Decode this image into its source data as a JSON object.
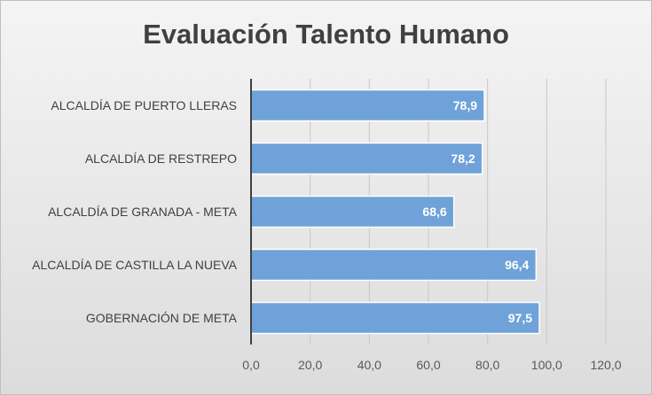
{
  "chart_data": {
    "type": "bar",
    "orientation": "horizontal",
    "title": "Evaluación Talento Humano",
    "categories": [
      "ALCALDÍA DE PUERTO LLERAS",
      "ALCALDÍA DE RESTREPO",
      "ALCALDÍA DE GRANADA - META",
      "ALCALDÍA DE CASTILLA LA NUEVA",
      "GOBERNACIÓN DE META"
    ],
    "values": [
      78.9,
      78.2,
      68.6,
      96.4,
      97.5
    ],
    "value_labels": [
      "78,9",
      "78,2",
      "68,6",
      "96,4",
      "97,5"
    ],
    "xlim": [
      0,
      120
    ],
    "x_ticks": [
      0,
      20,
      40,
      60,
      80,
      100,
      120
    ],
    "x_tick_labels": [
      "0,0",
      "20,0",
      "40,0",
      "60,0",
      "80,0",
      "100,0",
      "120,0"
    ],
    "grid": true,
    "legend": "none",
    "bar_color": "#6fa2d8"
  }
}
